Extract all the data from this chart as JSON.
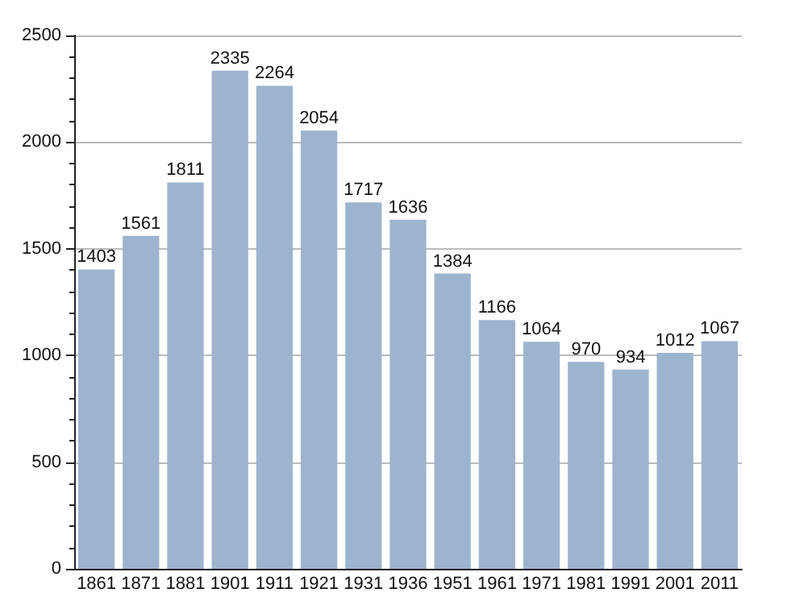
{
  "chart_data": {
    "type": "bar",
    "categories": [
      "1861",
      "1871",
      "1881",
      "1901",
      "1911",
      "1921",
      "1931",
      "1936",
      "1951",
      "1961",
      "1971",
      "1981",
      "1991",
      "2001",
      "2011"
    ],
    "values": [
      1403,
      1561,
      1811,
      2335,
      2264,
      2054,
      1717,
      1636,
      1384,
      1166,
      1064,
      970,
      934,
      1012,
      1067
    ],
    "color": "#9db4cf",
    "ylim": [
      0,
      2500
    ],
    "yticks": [
      0,
      500,
      1000,
      1500,
      2000,
      2500
    ],
    "grid": "y",
    "data_labels": true
  }
}
